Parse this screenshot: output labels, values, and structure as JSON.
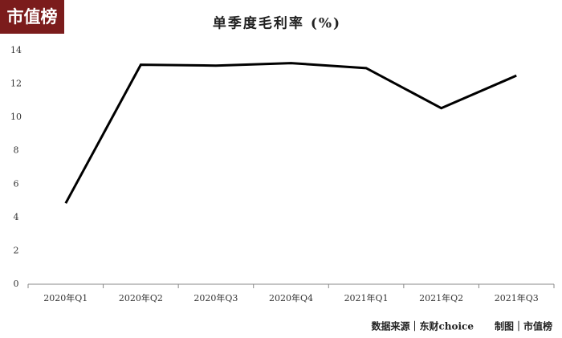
{
  "logo": "市值榜",
  "chart_data": {
    "type": "line",
    "title": "单季度毛利率 (%)",
    "categories": [
      "2020年Q1",
      "2020年Q2",
      "2020年Q3",
      "2020年Q4",
      "2021年Q1",
      "2021年Q2",
      "2021年Q3"
    ],
    "values": [
      4.85,
      13.15,
      13.1,
      13.25,
      12.95,
      10.55,
      12.5
    ],
    "color": "#000000",
    "ylim": [
      0,
      14
    ],
    "yticks": [
      0,
      2,
      4,
      6,
      8,
      10,
      12,
      14
    ],
    "grid": false
  },
  "source": "数据来源｜东财choice",
  "credit": "制图｜市值榜"
}
